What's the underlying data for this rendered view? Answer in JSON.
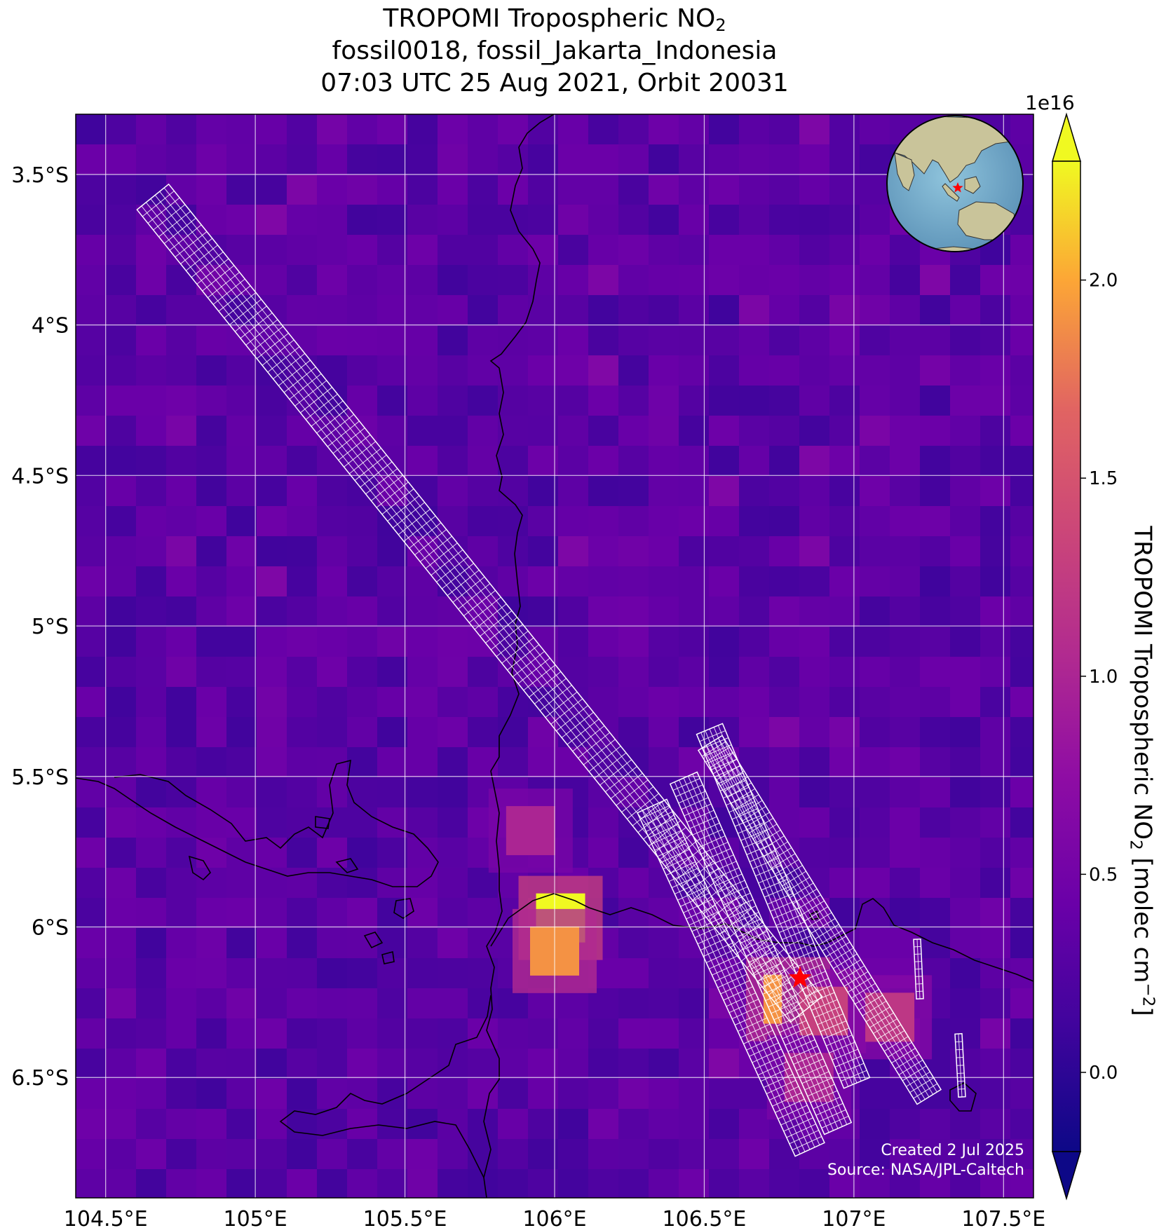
{
  "title": {
    "line1_prefix": "TROPOMI Tropospheric NO",
    "line1_sub": "2",
    "line2": "fossil0018, fossil_Jakarta_Indonesia",
    "line3": "07:03 UTC 25 Aug 2021, Orbit 20031"
  },
  "axes": {
    "x_ticks": [
      "104.5°E",
      "105°E",
      "105.5°E",
      "106°E",
      "106.5°E",
      "107°E",
      "107.5°E"
    ],
    "y_ticks": [
      "3.5°S",
      "4°S",
      "4.5°S",
      "5°S",
      "5.5°S",
      "6°S",
      "6.5°S"
    ],
    "lon_range": [
      104.4,
      107.6
    ],
    "lat_range": [
      -3.3,
      -6.9
    ],
    "grid": true
  },
  "colorbar": {
    "exponent": "1e16",
    "ticks": [
      "0.0",
      "0.5",
      "1.0",
      "1.5",
      "2.0"
    ],
    "label_prefix": "TROPOMI Tropospheric NO",
    "label_sub": "2",
    "label_suffix": " [molec cm",
    "label_sup": "−2",
    "label_end": "]",
    "range": [
      -0.2,
      2.3
    ],
    "extend": "both",
    "colormap": "plasma"
  },
  "credits": {
    "created": "Created 2 Jul 2025",
    "source": "Source: NASA/JPL-Caltech"
  },
  "target": {
    "lon": 106.82,
    "lat": -6.17,
    "marker": "star",
    "color": "#ff0000"
  },
  "hotspots": [
    {
      "lon": 106.02,
      "lat": -5.97,
      "value": 2.3
    },
    {
      "lon": 106.0,
      "lat": -6.08,
      "value": 1.9
    },
    {
      "lon": 105.92,
      "lat": -5.68,
      "value": 1.0
    },
    {
      "lon": 106.78,
      "lat": -6.24,
      "value": 1.9
    },
    {
      "lon": 106.9,
      "lat": -6.28,
      "value": 1.3
    },
    {
      "lon": 107.12,
      "lat": -6.3,
      "value": 1.2
    },
    {
      "lon": 106.85,
      "lat": -6.5,
      "value": 1.0
    }
  ],
  "inset_globe": {
    "marker": "star",
    "marker_color": "#ff0000"
  }
}
